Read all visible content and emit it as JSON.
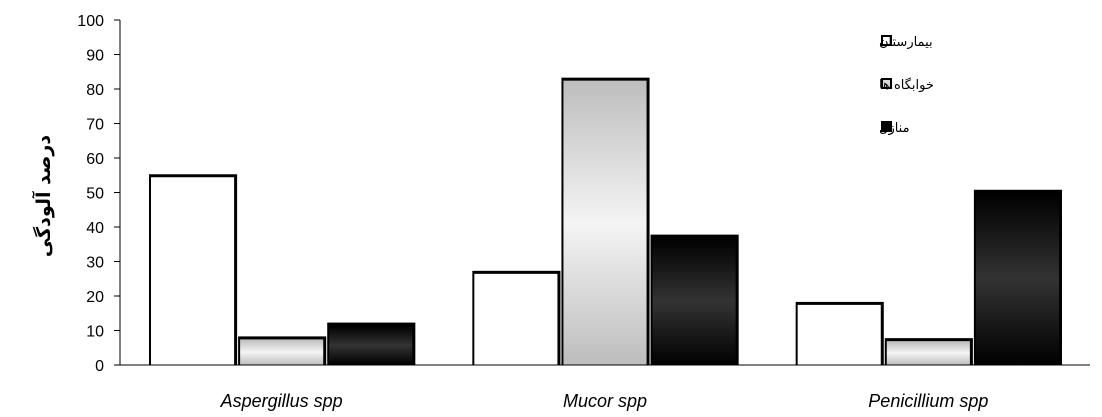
{
  "chart_data": {
    "type": "bar",
    "categories": [
      "Aspergillus spp",
      "Mucor spp",
      "Penicillium spp"
    ],
    "series": [
      {
        "name": "بیمارستان",
        "values": [
          55,
          27,
          18
        ],
        "color": "#ffffff"
      },
      {
        "name": "خوابگاه ها",
        "values": [
          8,
          83,
          7.5
        ],
        "color": "#d9d9d9"
      },
      {
        "name": "منازل",
        "values": [
          12,
          37.5,
          50.5
        ],
        "color": "#000000"
      }
    ],
    "ylabel": "درصد آلودگی",
    "ylim": [
      0,
      100
    ],
    "yticks": [
      0,
      10,
      20,
      30,
      40,
      50,
      60,
      70,
      80,
      90,
      100
    ],
    "legend_position": "top-right",
    "grid": false
  }
}
